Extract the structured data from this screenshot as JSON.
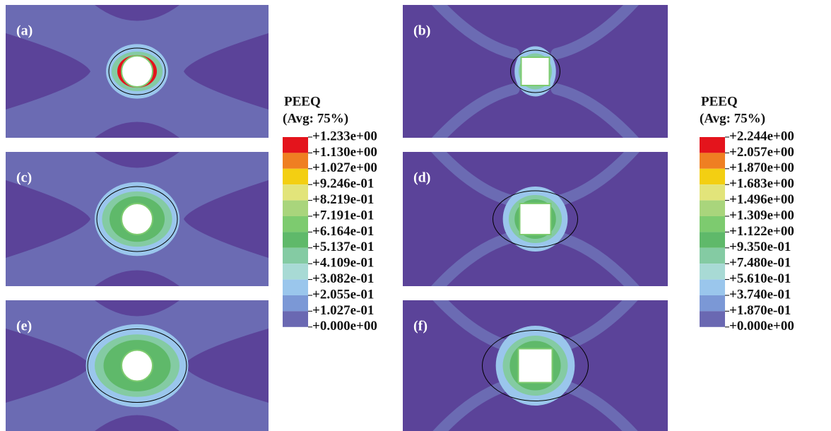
{
  "panels": [
    {
      "label": "(a)"
    },
    {
      "label": "(b)"
    },
    {
      "label": "(c)"
    },
    {
      "label": "(d)"
    },
    {
      "label": "(e)"
    },
    {
      "label": "(f)"
    }
  ],
  "legends": [
    {
      "title": "PEEQ",
      "subtitle": "(Avg: 75%)",
      "labels": [
        "+1.233e+00",
        "+1.130e+00",
        "+1.027e+00",
        "+9.246e-01",
        "+8.219e-01",
        "+7.191e-01",
        "+6.164e-01",
        "+5.137e-01",
        "+4.109e-01",
        "+3.082e-01",
        "+2.055e-01",
        "+1.027e-01",
        "+0.000e+00"
      ]
    },
    {
      "title": "PEEQ",
      "subtitle": "(Avg: 75%)",
      "labels": [
        "+2.244e+00",
        "+2.057e+00",
        "+1.870e+00",
        "+1.683e+00",
        "+1.496e+00",
        "+1.309e+00",
        "+1.122e+00",
        "+9.350e-01",
        "+7.480e-01",
        "+5.610e-01",
        "+3.740e-01",
        "+1.870e-01",
        "+0.000e+00"
      ]
    }
  ]
}
